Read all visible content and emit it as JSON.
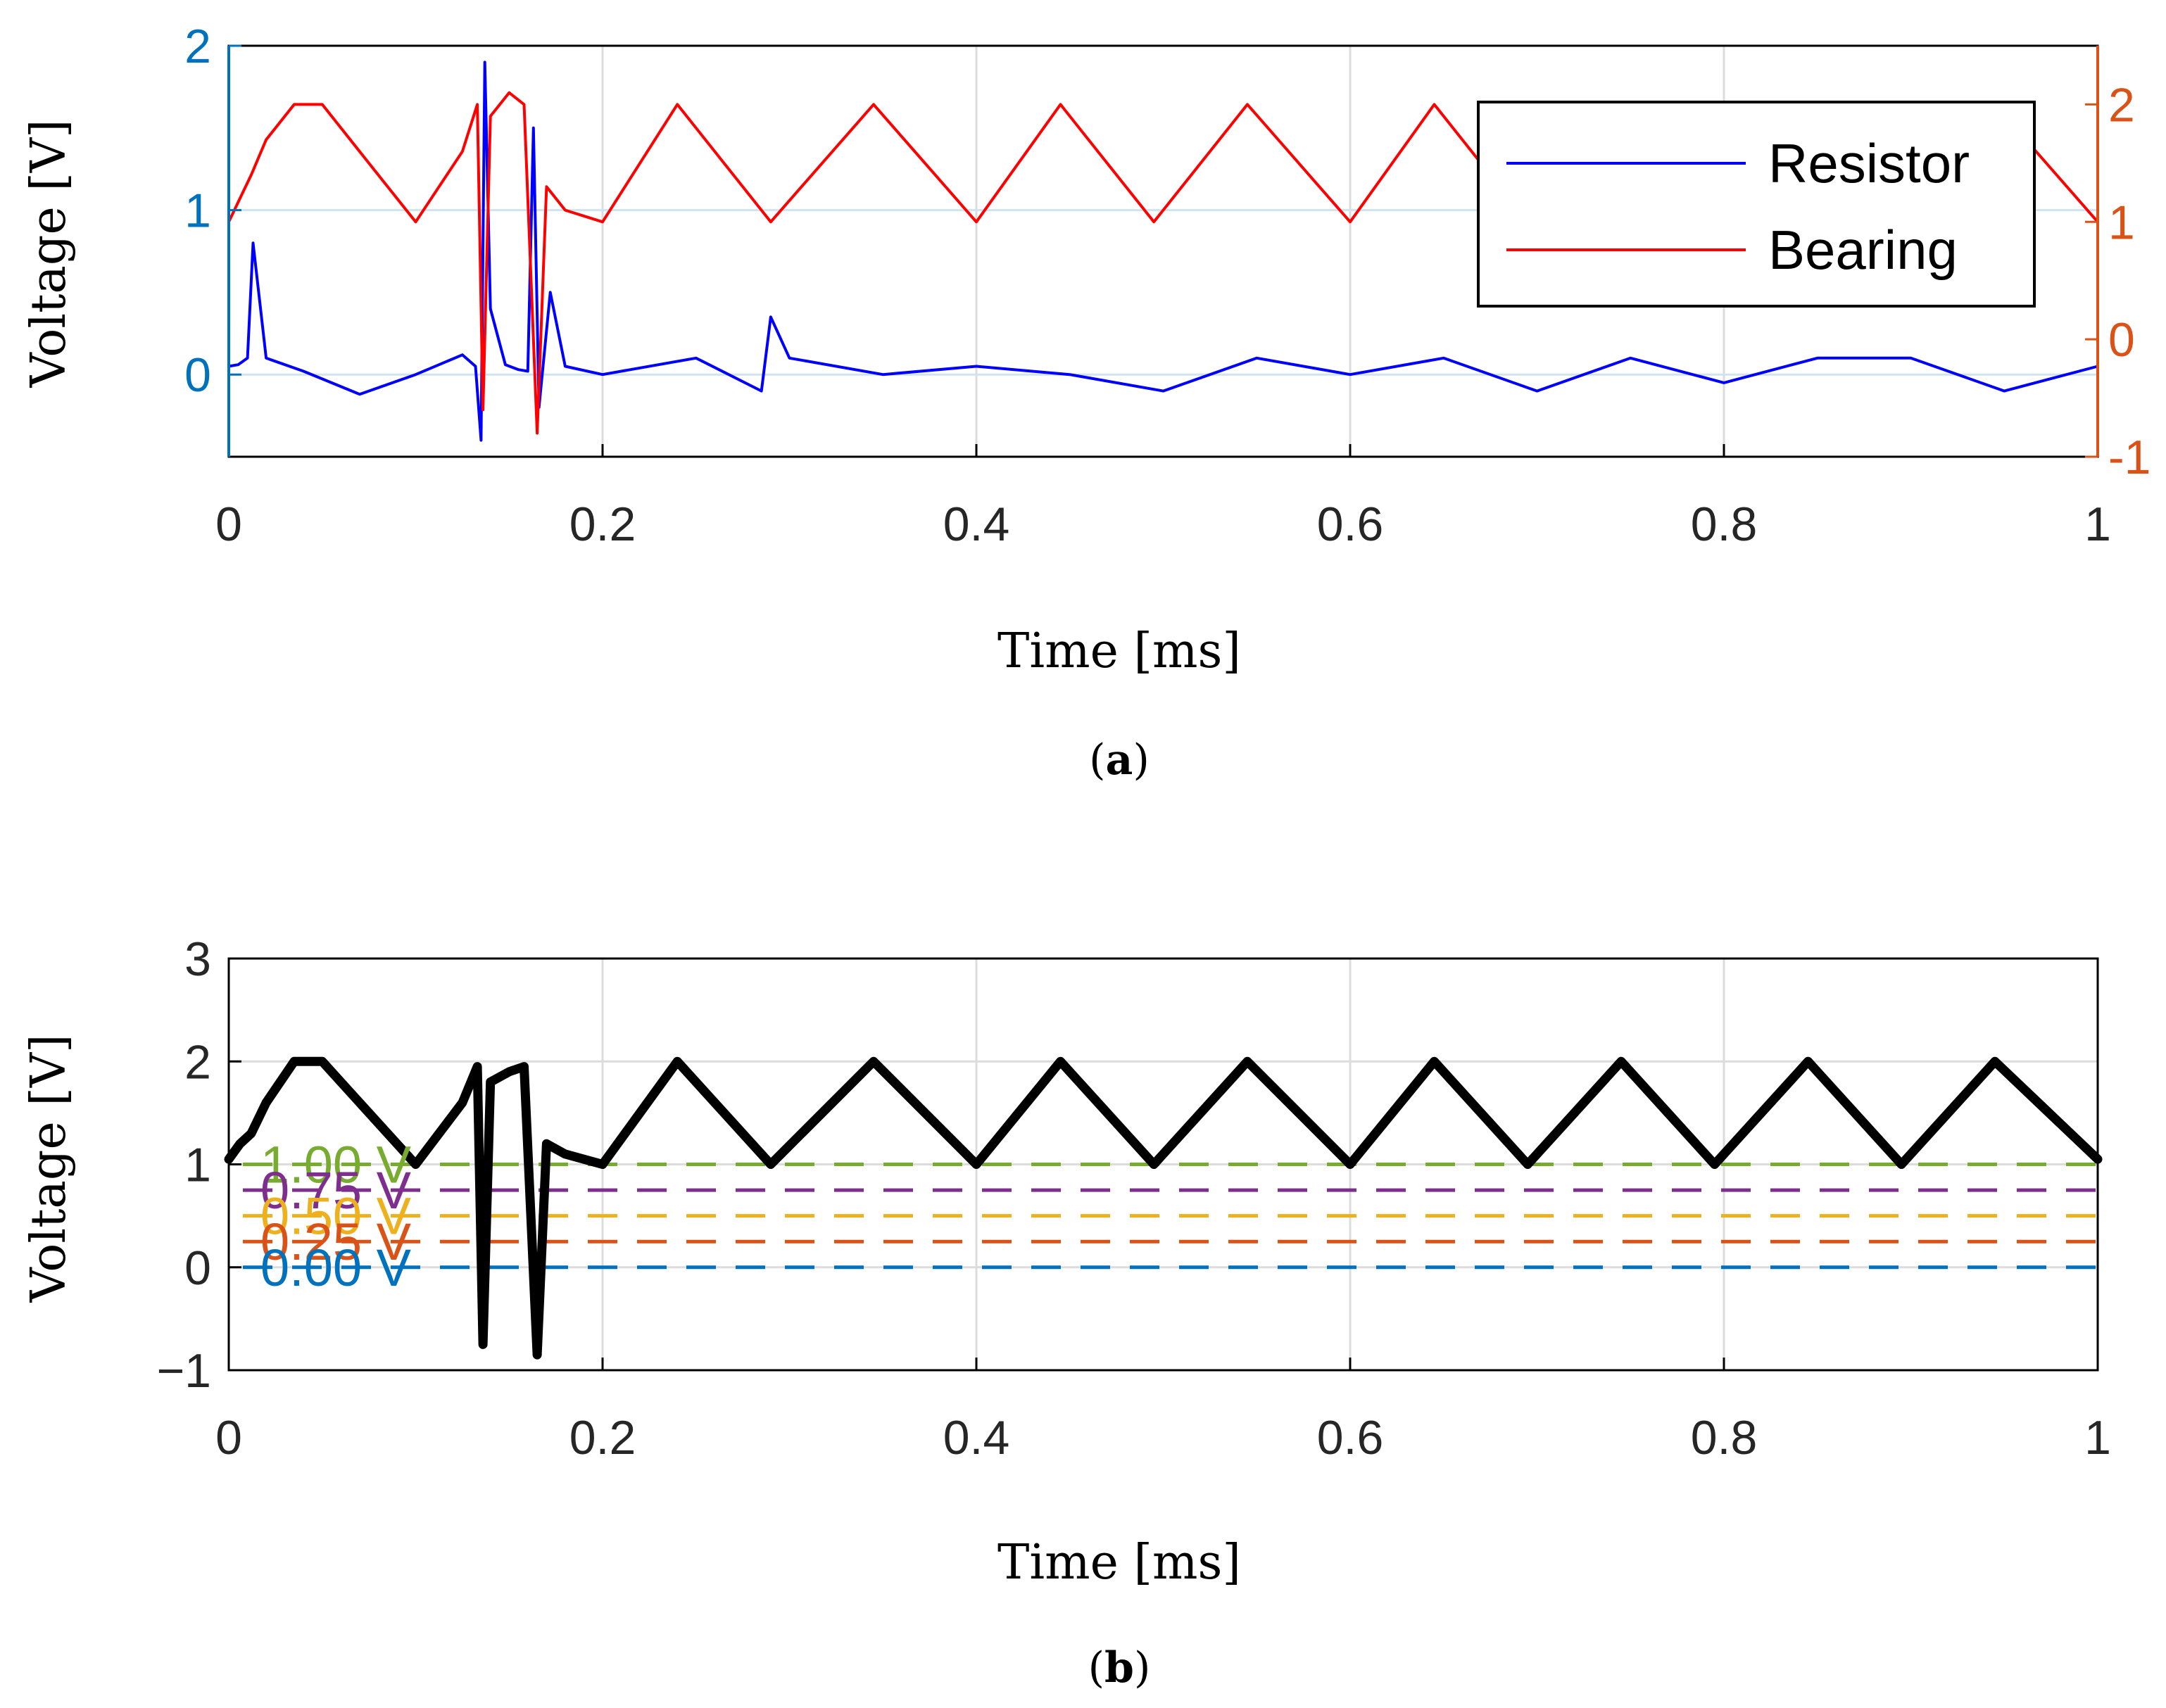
{
  "chart_data": [
    {
      "type": "line",
      "panel": "a",
      "caption_letter": "a",
      "xlabel": "Time [ms]",
      "ylabel": "Voltage [V]",
      "xlim": [
        0,
        1
      ],
      "xticks": [
        "0",
        "0.2",
        "0.4",
        "0.6",
        "0.8",
        "1"
      ],
      "ylim_left": [
        -0.5,
        2
      ],
      "yticks_left": [
        "0",
        "1",
        "2"
      ],
      "ylim_right": [
        -1,
        2.5
      ],
      "yticks_right": [
        "-1",
        "0",
        "1",
        "2"
      ],
      "left_axis_color": "#0072BD",
      "right_axis_color": "#D95319",
      "grid": true,
      "legend_position": "top-right",
      "series": [
        {
          "name": "Resistor",
          "axis": "left",
          "color": "#0000ff",
          "x": [
            0,
            0.005,
            0.01,
            0.013,
            0.02,
            0.04,
            0.07,
            0.1,
            0.125,
            0.132,
            0.135,
            0.137,
            0.14,
            0.148,
            0.155,
            0.16,
            0.163,
            0.166,
            0.172,
            0.18,
            0.2,
            0.25,
            0.285,
            0.29,
            0.3,
            0.35,
            0.4,
            0.45,
            0.5,
            0.55,
            0.6,
            0.65,
            0.7,
            0.75,
            0.8,
            0.85,
            0.9,
            0.95,
            1.0
          ],
          "values": [
            0.05,
            0.06,
            0.1,
            0.8,
            0.1,
            0.02,
            -0.12,
            0.0,
            0.12,
            0.05,
            -0.4,
            1.9,
            0.4,
            0.06,
            0.03,
            0.02,
            1.5,
            -0.2,
            0.5,
            0.05,
            0.0,
            0.1,
            -0.1,
            0.35,
            0.1,
            0.0,
            0.05,
            0.0,
            -0.1,
            0.1,
            0.0,
            0.1,
            -0.1,
            0.1,
            -0.05,
            0.1,
            0.1,
            -0.1,
            0.05
          ]
        },
        {
          "name": "Bearing",
          "axis": "right",
          "color": "#ff0000",
          "x": [
            0,
            0.006,
            0.012,
            0.02,
            0.035,
            0.05,
            0.075,
            0.1,
            0.125,
            0.133,
            0.136,
            0.14,
            0.15,
            0.158,
            0.165,
            0.17,
            0.18,
            0.2,
            0.24,
            0.29,
            0.345,
            0.4,
            0.445,
            0.495,
            0.545,
            0.6,
            0.645,
            0.695,
            0.745,
            0.795,
            0.845,
            0.895,
            0.945,
            1.0
          ],
          "values": [
            1.0,
            1.2,
            1.4,
            1.7,
            2.0,
            2.0,
            1.5,
            1.0,
            1.6,
            2.0,
            -0.6,
            1.9,
            2.1,
            2.0,
            -0.8,
            1.3,
            1.1,
            1.0,
            2.0,
            1.0,
            2.0,
            1.0,
            2.0,
            1.0,
            2.0,
            1.0,
            2.0,
            1.0,
            2.0,
            1.0,
            2.0,
            1.0,
            2.0,
            1.0
          ]
        }
      ]
    },
    {
      "type": "line",
      "panel": "b",
      "caption_letter": "b",
      "xlabel": "Time [ms]",
      "ylabel": "Voltage [V]",
      "xlim": [
        0,
        1
      ],
      "xticks": [
        "0",
        "0.2",
        "0.4",
        "0.6",
        "0.8",
        "1"
      ],
      "ylim": [
        -1,
        3
      ],
      "yticks": [
        "3",
        "2",
        "1",
        "0",
        "−1"
      ],
      "grid": true,
      "series": [
        {
          "color": "#000000",
          "x": [
            0,
            0.006,
            0.012,
            0.02,
            0.035,
            0.05,
            0.075,
            0.1,
            0.125,
            0.133,
            0.136,
            0.14,
            0.15,
            0.158,
            0.165,
            0.17,
            0.18,
            0.2,
            0.24,
            0.29,
            0.345,
            0.4,
            0.445,
            0.495,
            0.545,
            0.6,
            0.645,
            0.695,
            0.745,
            0.795,
            0.845,
            0.895,
            0.945,
            1.0
          ],
          "values": [
            1.05,
            1.2,
            1.3,
            1.6,
            2.0,
            2.0,
            1.5,
            1.0,
            1.6,
            1.95,
            -0.75,
            1.8,
            1.9,
            1.95,
            -0.85,
            1.2,
            1.1,
            1.0,
            2.0,
            1.0,
            2.0,
            1.0,
            2.0,
            1.0,
            2.0,
            1.0,
            2.0,
            1.0,
            2.0,
            1.0,
            2.0,
            1.0,
            2.0,
            1.05
          ]
        }
      ],
      "threshold_lines": [
        {
          "value": 1.0,
          "label": "1.00 V",
          "color": "#77AC30"
        },
        {
          "value": 0.75,
          "label": "0.75 V",
          "color": "#7E2F8E"
        },
        {
          "value": 0.5,
          "label": "0.50 V",
          "color": "#EDB120"
        },
        {
          "value": 0.25,
          "label": "0.25 V",
          "color": "#D95319"
        },
        {
          "value": 0.0,
          "label": "0.00 V",
          "color": "#0072BD"
        }
      ]
    }
  ]
}
